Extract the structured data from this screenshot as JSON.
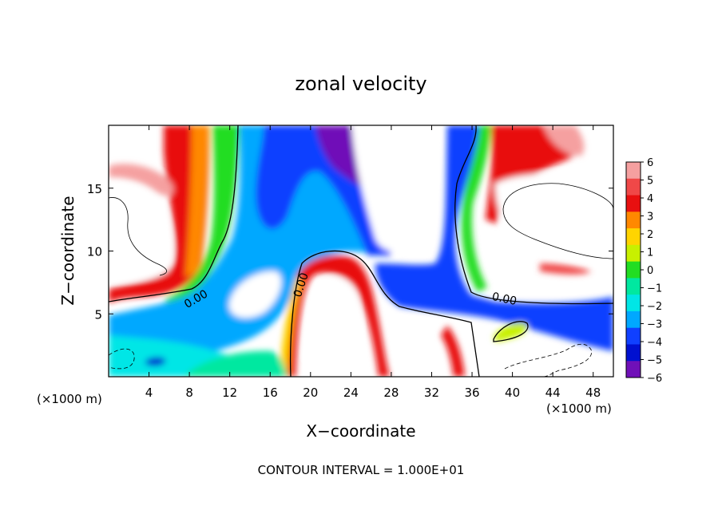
{
  "chart_data": {
    "type": "heatmap",
    "title": "zonal velocity",
    "xlabel": "X−coordinate",
    "ylabel": "Z−coordinate",
    "x_unit_label": "(×1000 m)",
    "x_unit_label_right": "(×1000 m)",
    "footer": "CONTOUR INTERVAL = 1.000E+01",
    "contour_label": "0.00",
    "xlim": [
      0,
      50
    ],
    "ylim": [
      0,
      20
    ],
    "x_ticks": [
      4,
      8,
      12,
      16,
      20,
      24,
      28,
      32,
      36,
      40,
      44,
      48
    ],
    "y_ticks": [
      5,
      10,
      15
    ],
    "colorbar": {
      "min": -6,
      "max": 6,
      "tick_labels": [
        "6",
        "5",
        "4",
        "3",
        "2",
        "1",
        "0",
        "−1",
        "−2",
        "−3",
        "−4",
        "−5",
        "−6"
      ]
    },
    "colors": {
      "c_pos6": "#f5a0a0",
      "c_pos5": "#f04848",
      "c_pos4": "#e81010",
      "c_pos3": "#ff8800",
      "c_pos2": "#ffd400",
      "c_pos1": "#c8f000",
      "c_zero": "#22dd22",
      "c_neg1": "#00e8a0",
      "c_neg2": "#00e6e6",
      "c_neg3": "#00a8ff",
      "c_neg4": "#1040ff",
      "c_neg5": "#0010d0",
      "c_neg6": "#7010b8"
    }
  }
}
